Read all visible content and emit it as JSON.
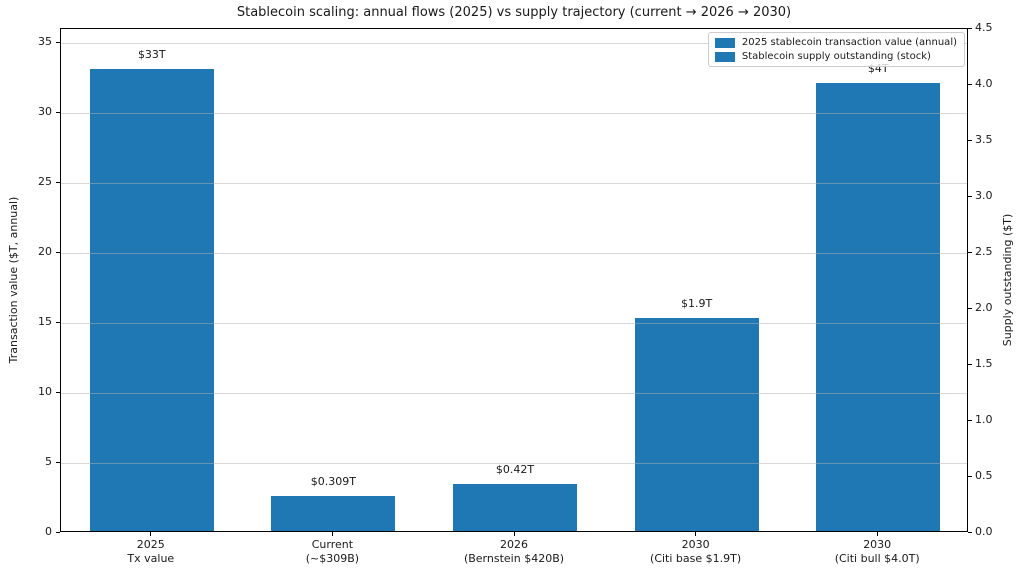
{
  "colors": {
    "bar": "#1f77b4",
    "grid": "#b0b0b0",
    "spine": "#000000",
    "text": "#1a1a1a",
    "legend_border": "#cccccc",
    "background": "#ffffff"
  },
  "chart_data": {
    "type": "bar",
    "title": "Stablecoin scaling: annual flows (2025) vs supply trajectory (current → 2026 → 2030)",
    "categories": [
      "2025\nTx value",
      "Current\n(~$309B)",
      "2026\n(Bernstein $420B)",
      "2030\n(Citi base $1.9T)",
      "2030\n(Citi bull $4.0T)"
    ],
    "series": [
      {
        "name": "2025 stablecoin transaction value (annual)",
        "axis": "left",
        "values": [
          33,
          null,
          null,
          null,
          null
        ]
      },
      {
        "name": "Stablecoin supply outstanding (stock)",
        "axis": "right",
        "values": [
          null,
          0.309,
          0.42,
          1.9,
          4.0
        ]
      }
    ],
    "bar_labels": [
      "$33T",
      "$0.309T",
      "$0.42T",
      "$1.9T",
      "$4T"
    ],
    "left_axis": {
      "label": "Transaction value ($T, annual)",
      "ticks": [
        0,
        5,
        10,
        15,
        20,
        25,
        30,
        35
      ],
      "lim": [
        0,
        36
      ]
    },
    "right_axis": {
      "label": "Supply outstanding ($T)",
      "ticks": [
        0,
        0.5,
        1,
        1.5,
        2,
        2.5,
        3,
        3.5,
        4,
        4.5
      ],
      "lim": [
        0,
        4.5
      ]
    },
    "legend": {
      "position": "upper right"
    },
    "grid": true
  }
}
